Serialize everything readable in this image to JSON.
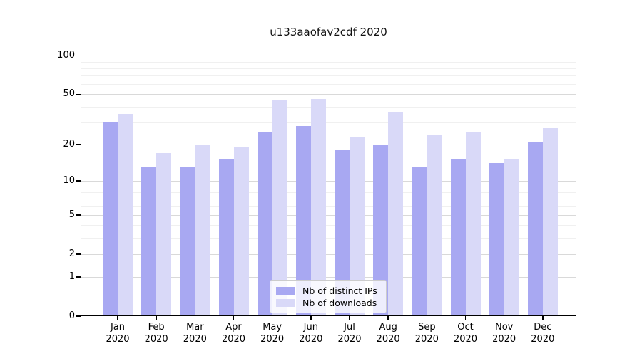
{
  "chart_data": {
    "type": "bar",
    "title": "u133aaofav2cdf 2020",
    "yscale": "symlog",
    "categories": [
      "Jan",
      "Feb",
      "Mar",
      "Apr",
      "May",
      "Jun",
      "Jul",
      "Aug",
      "Sep",
      "Oct",
      "Nov",
      "Dec"
    ],
    "year_label": "2020",
    "series": [
      {
        "name": "Nb of distinct IPs",
        "color": "#a8a8f2",
        "values": [
          30,
          13,
          13,
          15,
          25,
          28,
          18,
          20,
          13,
          15,
          14,
          21
        ]
      },
      {
        "name": "Nb of downloads",
        "color": "#d9d9f8",
        "values": [
          35,
          17,
          20,
          19,
          45,
          46,
          23,
          36,
          24,
          25,
          15,
          27
        ]
      }
    ],
    "yticks": [
      0,
      1,
      2,
      5,
      10,
      20,
      50,
      100
    ],
    "minor_gridlines": [
      3,
      4,
      6,
      7,
      8,
      9,
      30,
      40,
      60,
      70,
      80,
      90
    ],
    "ylim": [
      0,
      127
    ],
    "grid": true,
    "legend_position": "bottom-center",
    "colors": {
      "major_grid": "#d9d9d9",
      "minor_grid": "#f0f0f0",
      "axis": "#000000",
      "text": "#000000",
      "background": "#ffffff"
    }
  }
}
